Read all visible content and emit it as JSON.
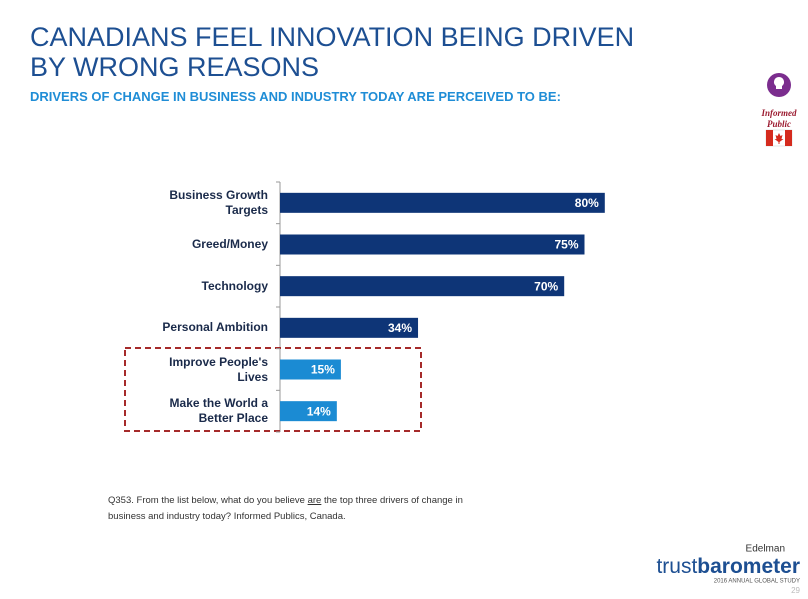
{
  "title": "CANADIANS FEEL INNOVATION BEING DRIVEN BY WRONG REASONS",
  "subtitle": "DRIVERS OF CHANGE IN BUSINESS AND INDUSTRY TODAY ARE PERCEIVED TO BE:",
  "badge": {
    "line1": "Informed",
    "line2": "Public"
  },
  "chart_data": {
    "type": "hbar",
    "categories": [
      "Business Growth\nTargets",
      "Greed/Money",
      "Technology",
      "Personal Ambition",
      "Improve People's\nLives",
      "Make the World a\nBetter Place"
    ],
    "values": [
      80,
      75,
      70,
      34,
      15,
      14
    ],
    "value_labels": [
      "80%",
      "75%",
      "70%",
      "34%",
      "15%",
      "14%"
    ],
    "colors": [
      "#0e3577",
      "#0e3577",
      "#0e3577",
      "#0e3577",
      "#1b8bd3",
      "#1b8bd3"
    ],
    "xlim": [
      0,
      100
    ]
  },
  "footnote": [
    "Q353. From the list below, what do you believe ",
    "are",
    " the top three drivers of change in business and industry today? Informed Publics, Canada."
  ],
  "logo": {
    "brand": "Edelman",
    "name_light": "trust",
    "name_bold": "barometer",
    "tagline": "2016 ANNUAL GLOBAL STUDY"
  },
  "page_number": "29"
}
